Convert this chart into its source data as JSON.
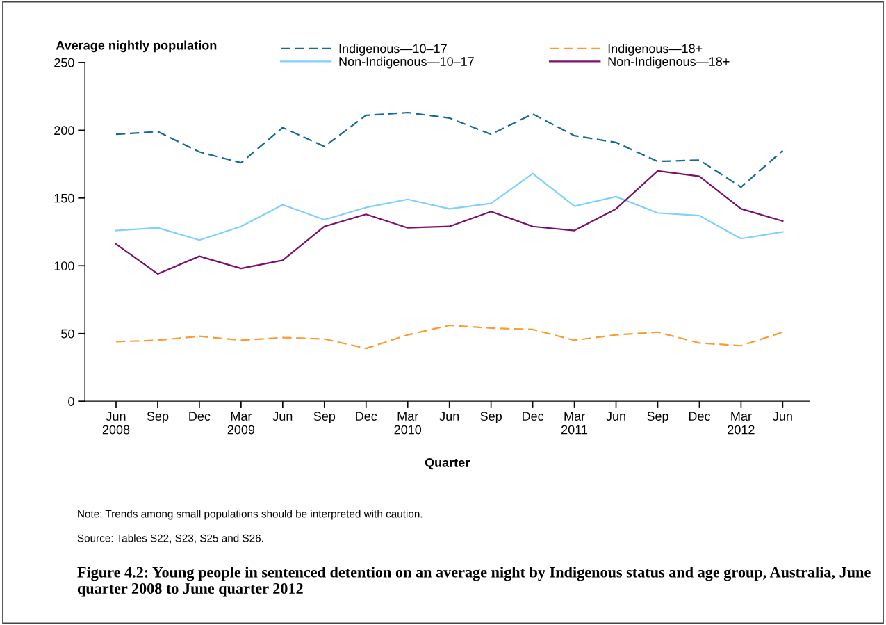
{
  "chart_data": {
    "type": "line",
    "title": "Figure 4.2: Young people in sentenced detention on an average night by Indigenous status and age group, Australia, June quarter 2008 to June quarter 2012",
    "ylabel": "Average nightly population",
    "xlabel": "Quarter",
    "categories": [
      "Jun\n2008",
      "Sep",
      "Dec",
      "Mar\n2009",
      "Jun",
      "Sep",
      "Dec",
      "Mar\n2010",
      "Jun",
      "Sep",
      "Dec",
      "Mar\n2011",
      "Jun",
      "Sep",
      "Dec",
      "Mar\n2012",
      "Jun"
    ],
    "series": [
      {
        "name": "Indigenous—10–17",
        "color": "#116a9a",
        "line_style": "dashed",
        "values": [
          197,
          199,
          184,
          176,
          202,
          188,
          211,
          213,
          209,
          197,
          212,
          196,
          191,
          177,
          178,
          158,
          185
        ]
      },
      {
        "name": "Indigenous—18+",
        "color": "#ff9a2e",
        "line_style": "dashed",
        "values": [
          44,
          45,
          48,
          45,
          47,
          46,
          39,
          49,
          56,
          54,
          53,
          45,
          49,
          51,
          43,
          41,
          51
        ]
      },
      {
        "name": "Non-Indigenous—10–17",
        "color": "#7fd0ff",
        "line_style": "solid",
        "values": [
          126,
          128,
          119,
          129,
          145,
          134,
          143,
          149,
          142,
          146,
          168,
          144,
          151,
          139,
          137,
          120,
          125
        ]
      },
      {
        "name": "Non-Indigenous—18+",
        "color": "#7a0f6e",
        "line_style": "solid",
        "values": [
          116,
          94,
          107,
          98,
          104,
          129,
          138,
          128,
          129,
          140,
          129,
          126,
          142,
          170,
          166,
          142,
          133
        ]
      }
    ],
    "ylim": [
      0,
      250
    ],
    "yticks": [
      0,
      50,
      100,
      150,
      200,
      250
    ],
    "grid": false,
    "legend": "top",
    "marker": "none",
    "annotations": [
      "Note: Trends among small populations should be interpreted with caution.",
      "Source: Tables S22, S23, S25 and S26."
    ]
  }
}
